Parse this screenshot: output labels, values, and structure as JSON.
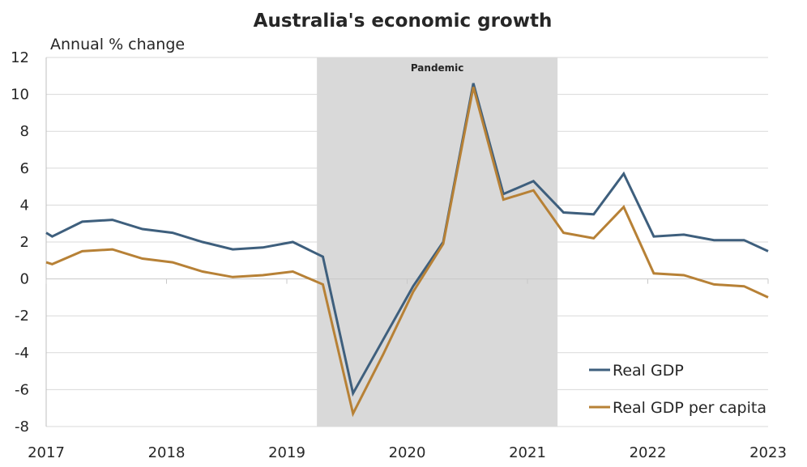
{
  "chart_data": {
    "type": "line",
    "title": "Australia's economic growth",
    "ylabel": "Annual % change",
    "ylim": [
      -8,
      12
    ],
    "yticks": [
      "12",
      "10",
      "8",
      "6",
      "4",
      "2",
      "0",
      "-2",
      "-4",
      "-6",
      "-8"
    ],
    "xlim": [
      2017.0,
      2023.0
    ],
    "xticks": [
      "2017",
      "2018",
      "2019",
      "2020",
      "2021",
      "2022",
      "2023"
    ],
    "shaded_region": {
      "label": "Pandemic",
      "x_start": 2019.25,
      "x_end": 2021.25
    },
    "grid": "horizontal",
    "legend_position": "bottom-right",
    "series": [
      {
        "name": "Real GDP",
        "color": "#3e5f7d",
        "x": [
          2017.0,
          2017.05,
          2017.3,
          2017.55,
          2017.8,
          2018.05,
          2018.3,
          2018.55,
          2018.8,
          2019.05,
          2019.3,
          2019.55,
          2019.8,
          2020.05,
          2020.3,
          2020.55,
          2020.8,
          2021.05,
          2021.3,
          2021.55,
          2021.8,
          2022.05,
          2022.3,
          2022.55,
          2022.8,
          2023.0
        ],
        "values": [
          2.5,
          2.3,
          3.1,
          3.2,
          2.7,
          2.5,
          2.0,
          1.6,
          1.7,
          2.0,
          1.2,
          -6.2,
          -3.3,
          -0.4,
          2.0,
          10.6,
          4.6,
          5.3,
          3.6,
          3.5,
          5.7,
          2.3,
          2.4,
          2.1,
          2.1,
          1.5
        ]
      },
      {
        "name": "Real GDP per capita",
        "color": "#b78136",
        "x": [
          2017.0,
          2017.05,
          2017.3,
          2017.55,
          2017.8,
          2018.05,
          2018.3,
          2018.55,
          2018.8,
          2019.05,
          2019.3,
          2019.55,
          2019.8,
          2020.05,
          2020.3,
          2020.55,
          2020.8,
          2021.05,
          2021.3,
          2021.55,
          2021.8,
          2022.05,
          2022.3,
          2022.55,
          2022.8,
          2023.0
        ],
        "values": [
          0.9,
          0.8,
          1.5,
          1.6,
          1.1,
          0.9,
          0.4,
          0.1,
          0.2,
          0.4,
          -0.3,
          -7.3,
          -4.1,
          -0.7,
          1.9,
          10.4,
          4.3,
          4.8,
          2.5,
          2.2,
          3.9,
          0.3,
          0.2,
          -0.3,
          -0.4,
          -1.0
        ]
      }
    ]
  }
}
